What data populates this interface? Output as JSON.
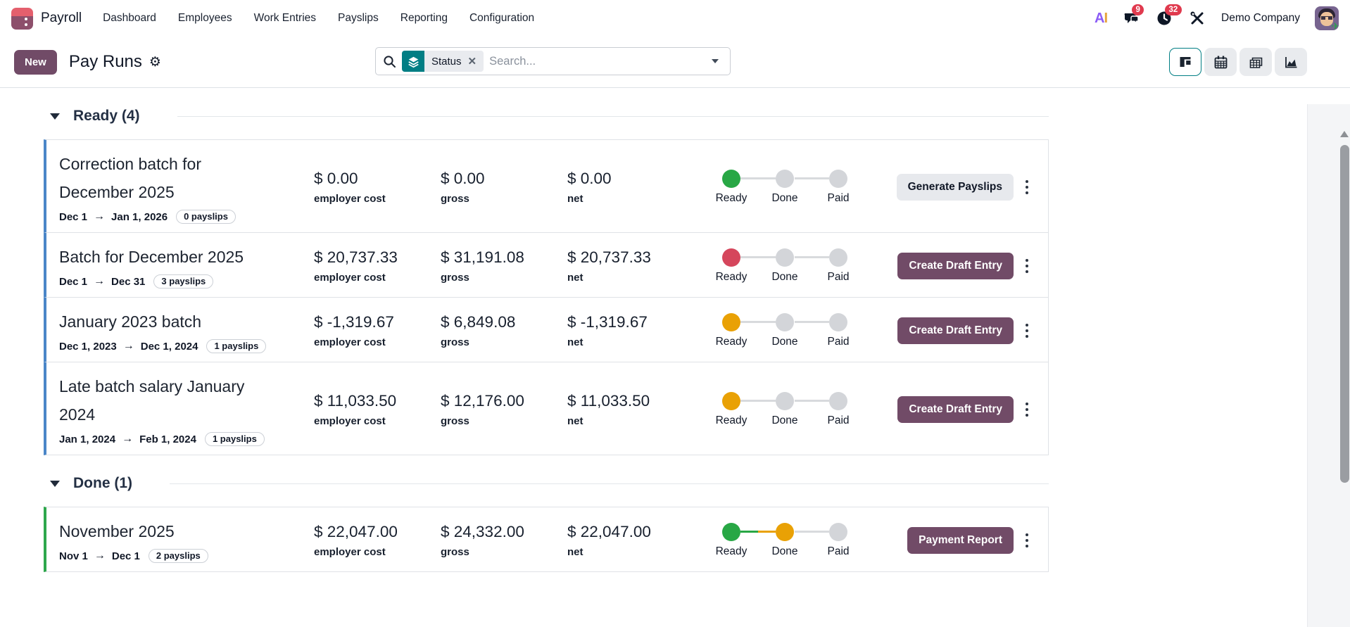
{
  "colors": {
    "status_green": "#28a745",
    "status_red": "#d5465c",
    "status_orange": "#e9a105",
    "status_gray": "#d3d5d9",
    "connector_gray": "#d8dadd",
    "primary_purple": "#714B67",
    "accent_teal": "#017e84",
    "badge_red": "#e03a4e",
    "ready_accent": "#4a86c8",
    "done_accent": "#2ea74c"
  },
  "navbar": {
    "app_name": "Payroll",
    "menu_items": [
      "Dashboard",
      "Employees",
      "Work Entries",
      "Payslips",
      "Reporting",
      "Configuration"
    ],
    "ai_letter_a": "A",
    "ai_letter_i": "I",
    "messages_badge": "9",
    "activities_badge": "32",
    "company_name": "Demo Company"
  },
  "control_panel": {
    "new_button_label": "New",
    "page_title": "Pay Runs",
    "search_facet_label": "Status",
    "search_placeholder": "Search...",
    "views": [
      "kanban",
      "calendar",
      "pivot",
      "graph"
    ],
    "active_view": "kanban"
  },
  "metric_labels": [
    "employer cost",
    "gross",
    "net"
  ],
  "stepper_labels": [
    "Ready",
    "Done",
    "Paid"
  ],
  "groups": [
    {
      "label": "Ready (4)",
      "accent": "ready_accent",
      "rows": [
        {
          "title": "Correction batch for December 2025",
          "date_from": "Dec 1",
          "date_to": "Jan 1, 2026",
          "payslips": "0 payslips",
          "employer_cost": "$ 0.00",
          "gross": "$ 0.00",
          "net": "$ 0.00",
          "steps": [
            "green",
            "gray",
            "gray"
          ],
          "action_label": "Generate Payslips",
          "action_style": "secondary"
        },
        {
          "title": "Batch for December 2025",
          "date_from": "Dec 1",
          "date_to": "Dec 31",
          "payslips": "3 payslips",
          "employer_cost": "$ 20,737.33",
          "gross": "$ 31,191.08",
          "net": "$ 20,737.33",
          "steps": [
            "red",
            "gray",
            "gray"
          ],
          "action_label": "Create Draft Entry",
          "action_style": "primary"
        },
        {
          "title": "January 2023 batch",
          "date_from": "Dec 1, 2023",
          "date_to": "Dec 1, 2024",
          "payslips": "1 payslips",
          "employer_cost": "$ -1,319.67",
          "gross": "$ 6,849.08",
          "net": "$ -1,319.67",
          "steps": [
            "orange",
            "gray",
            "gray"
          ],
          "action_label": "Create Draft Entry",
          "action_style": "primary"
        },
        {
          "title": "Late batch salary January 2024",
          "date_from": "Jan 1, 2024",
          "date_to": "Feb 1, 2024",
          "payslips": "1 payslips",
          "employer_cost": "$ 11,033.50",
          "gross": "$ 12,176.00",
          "net": "$ 11,033.50",
          "steps": [
            "orange",
            "gray",
            "gray"
          ],
          "action_label": "Create Draft Entry",
          "action_style": "primary"
        }
      ]
    },
    {
      "label": "Done (1)",
      "accent": "done_accent",
      "rows": [
        {
          "title": "November 2025",
          "date_from": "Nov 1",
          "date_to": "Dec 1",
          "payslips": "2 payslips",
          "employer_cost": "$ 22,047.00",
          "gross": "$ 24,332.00",
          "net": "$ 22,047.00",
          "steps": [
            "green",
            "orange",
            "gray"
          ],
          "action_label": "Payment Report",
          "action_style": "primary"
        }
      ]
    }
  ]
}
